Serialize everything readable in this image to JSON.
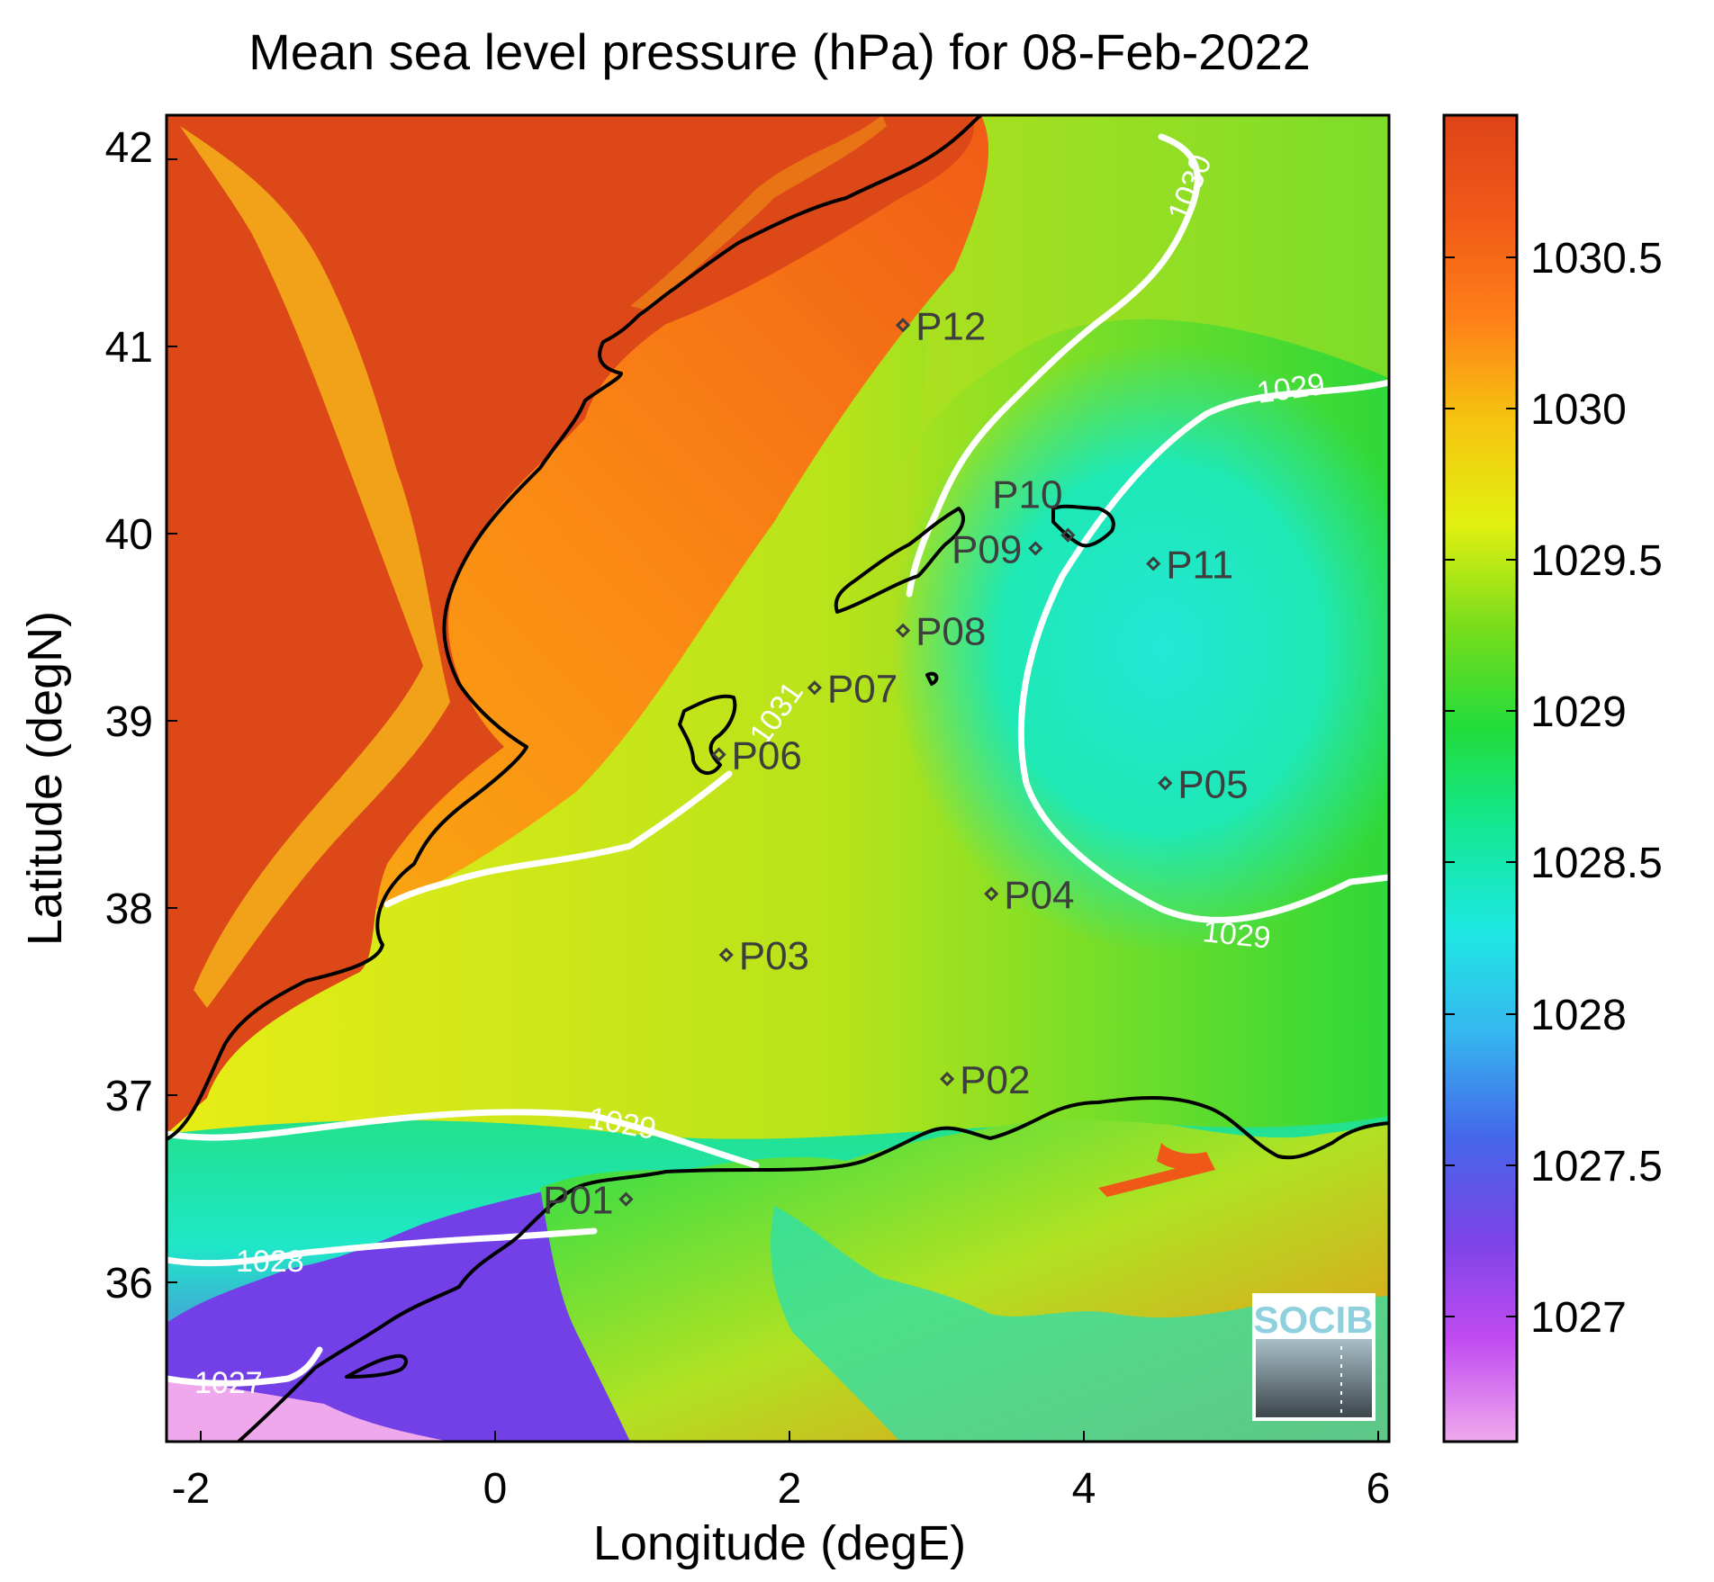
{
  "title": "Mean sea level pressure (hPa) for 08-Feb-2022",
  "xlabel": "Longitude (degE)",
  "ylabel": "Latitude (degN)",
  "xticks": [
    "-2",
    "0",
    "2",
    "4",
    "6"
  ],
  "yticks": [
    "36",
    "37",
    "38",
    "39",
    "40",
    "41",
    "42"
  ],
  "colorbar_ticks": [
    "1027",
    "1027.5",
    "1028",
    "1028.5",
    "1029",
    "1029.5",
    "1030",
    "1030.5"
  ],
  "colorbar_colors": [
    "#f0aaee",
    "#c14bf0",
    "#7a44e8",
    "#4468ea",
    "#36b6ef",
    "#1ee8e3",
    "#12e895",
    "#22dc3a",
    "#7add1c",
    "#e2f010",
    "#f5c510",
    "#ff8018",
    "#f05a18",
    "#dc4418"
  ],
  "stations": [
    {
      "label": "P01",
      "lon": 0.82,
      "lat": 36.52
    },
    {
      "label": "P02",
      "lon": 3.0,
      "lat": 37.15
    },
    {
      "label": "P03",
      "lon": 1.5,
      "lat": 37.8
    },
    {
      "label": "P04",
      "lon": 3.3,
      "lat": 38.12
    },
    {
      "label": "P05",
      "lon": 4.48,
      "lat": 38.7
    },
    {
      "label": "P06",
      "lon": 1.45,
      "lat": 38.85
    },
    {
      "label": "P07",
      "lon": 2.1,
      "lat": 39.2
    },
    {
      "label": "P08",
      "lon": 2.7,
      "lat": 39.5
    },
    {
      "label": "P09",
      "lon": 3.6,
      "lat": 39.93
    },
    {
      "label": "P10",
      "lon": 3.82,
      "lat": 40.0
    },
    {
      "label": "P11",
      "lon": 4.4,
      "lat": 39.85
    },
    {
      "label": "P12",
      "lon": 2.7,
      "lat": 41.1
    }
  ],
  "contour_labels": [
    "1030",
    "1029",
    "1031",
    "1029",
    "1029",
    "1028",
    "1027"
  ],
  "logo": {
    "text": "SOCIB"
  }
}
